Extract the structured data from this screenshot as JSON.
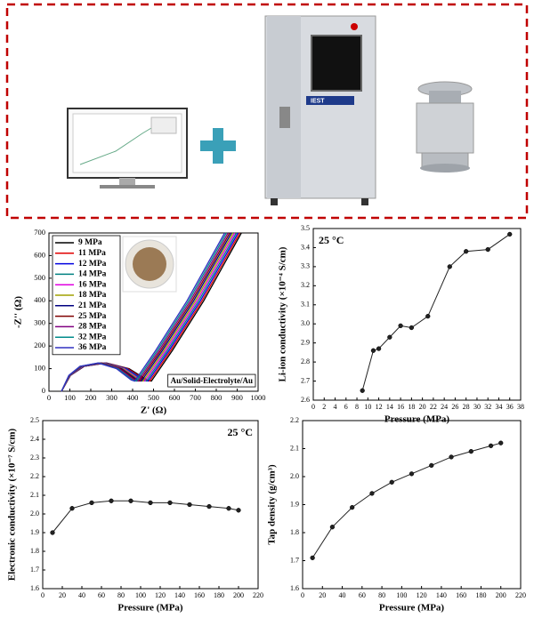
{
  "header_panel": {
    "device_label": "IEST"
  },
  "chart_data": [
    {
      "type": "line",
      "xlabel": "Z' (Ω)",
      "ylabel": "-Z'' (Ω)",
      "annotation": "Au/Solid-Electrolyte/Au",
      "annotation_position": "lower right",
      "xlim": [
        0,
        1000
      ],
      "xticks": [
        0,
        100,
        200,
        300,
        400,
        500,
        600,
        700,
        800,
        900,
        1000
      ],
      "ylim": [
        0,
        700
      ],
      "yticks": [
        0,
        100,
        200,
        300,
        400,
        500,
        600,
        700
      ],
      "grid": false,
      "marker": false,
      "legend": "upper left",
      "series": [
        {
          "name": "9 MPa",
          "color": "#000000",
          "x": [
            60,
            103,
            168,
            275,
            383,
            469,
            490,
            590,
            740,
            920
          ],
          "values": [
            0,
            70,
            110,
            125,
            100,
            50,
            45,
            180,
            400,
            700
          ]
        },
        {
          "name": "11 MPa",
          "color": "#e00000",
          "x": [
            60,
            102,
            166,
            271,
            377,
            461,
            482,
            582,
            732,
            912
          ],
          "values": [
            0,
            70,
            110,
            125,
            100,
            50,
            45,
            180,
            400,
            700
          ]
        },
        {
          "name": "12 MPa",
          "color": "#0000e0",
          "x": [
            60,
            101,
            164,
            267,
            371,
            453,
            474,
            574,
            724,
            904
          ],
          "values": [
            0,
            70,
            110,
            125,
            100,
            50,
            45,
            180,
            400,
            700
          ]
        },
        {
          "name": "14 MPa",
          "color": "#008080",
          "x": [
            60,
            101,
            162,
            263,
            365,
            446,
            466,
            566,
            716,
            896
          ],
          "values": [
            0,
            70,
            110,
            125,
            100,
            50,
            45,
            180,
            400,
            700
          ]
        },
        {
          "name": "16 MPa",
          "color": "#e000e0",
          "x": [
            60,
            100,
            160,
            259,
            359,
            438,
            458,
            558,
            708,
            888
          ],
          "values": [
            0,
            70,
            110,
            125,
            100,
            50,
            45,
            180,
            400,
            700
          ]
        },
        {
          "name": "18 MPa",
          "color": "#a0a000",
          "x": [
            60,
            99,
            158,
            255,
            353,
            431,
            450,
            550,
            700,
            880
          ],
          "values": [
            0,
            70,
            110,
            125,
            100,
            50,
            45,
            180,
            400,
            700
          ]
        },
        {
          "name": "21 MPa",
          "color": "#000080",
          "x": [
            60,
            98,
            156,
            251,
            347,
            423,
            442,
            542,
            692,
            872
          ],
          "values": [
            0,
            70,
            110,
            125,
            100,
            50,
            45,
            180,
            400,
            700
          ]
        },
        {
          "name": "25 MPa",
          "color": "#800000",
          "x": [
            60,
            97,
            154,
            247,
            341,
            415,
            434,
            534,
            684,
            864
          ],
          "values": [
            0,
            70,
            110,
            125,
            100,
            50,
            45,
            180,
            400,
            700
          ]
        },
        {
          "name": "28 MPa",
          "color": "#800080",
          "x": [
            60,
            97,
            152,
            243,
            335,
            408,
            426,
            526,
            676,
            856
          ],
          "values": [
            0,
            70,
            110,
            125,
            100,
            50,
            45,
            180,
            400,
            700
          ]
        },
        {
          "name": "32 MPa",
          "color": "#008b8b",
          "x": [
            60,
            96,
            150,
            239,
            329,
            400,
            418,
            518,
            668,
            848
          ],
          "values": [
            0,
            70,
            110,
            125,
            100,
            50,
            45,
            180,
            400,
            700
          ]
        },
        {
          "name": "36 MPa",
          "color": "#3030c0",
          "x": [
            60,
            95,
            148,
            235,
            323,
            393,
            410,
            510,
            660,
            840
          ],
          "values": [
            0,
            70,
            110,
            125,
            100,
            50,
            45,
            180,
            400,
            700
          ]
        }
      ]
    },
    {
      "type": "line",
      "xlabel": "Pressure (MPa)",
      "ylabel": "Li-ion conductivity (×10⁻⁴ S/cm)",
      "annotation": "25 °C",
      "annotation_position": "upper left",
      "xlim": [
        0,
        38
      ],
      "xticks": [
        0,
        2,
        4,
        6,
        8,
        10,
        12,
        14,
        16,
        18,
        20,
        22,
        24,
        26,
        28,
        30,
        32,
        34,
        36,
        38
      ],
      "ylim": [
        2.6,
        3.5
      ],
      "yticks": [
        2.6,
        2.7,
        2.8,
        2.9,
        {
          "value": 3,
          "label": "3.0"
        },
        3.1,
        3.2,
        3.3,
        3.4,
        3.5
      ],
      "grid": false,
      "marker": true,
      "x": [
        9,
        11,
        12,
        14,
        16,
        18,
        21,
        25,
        28,
        32,
        36
      ],
      "series": [
        {
          "color": "#222222",
          "values": [
            2.65,
            2.86,
            2.87,
            2.93,
            2.99,
            2.98,
            3.04,
            3.3,
            3.38,
            3.39,
            3.47
          ]
        }
      ]
    },
    {
      "type": "line",
      "xlabel": "Pressure (MPa)",
      "ylabel": "Electronic conductivity (×10⁻⁷ S/cm)",
      "annotation": "25 °C",
      "annotation_position": "upper right",
      "xlim": [
        0,
        220
      ],
      "xticks": [
        0,
        20,
        40,
        60,
        80,
        100,
        120,
        140,
        160,
        180,
        200,
        220
      ],
      "ylim": [
        1.6,
        2.5
      ],
      "yticks": [
        1.6,
        1.7,
        1.8,
        1.9,
        {
          "value": 2,
          "label": "2.0"
        },
        2.1,
        2.2,
        2.3,
        2.4,
        2.5
      ],
      "grid": false,
      "marker": true,
      "x": [
        10,
        30,
        50,
        70,
        90,
        110,
        130,
        150,
        170,
        190,
        200
      ],
      "series": [
        {
          "color": "#222222",
          "values": [
            1.9,
            2.03,
            2.06,
            2.07,
            2.07,
            2.06,
            2.06,
            2.05,
            2.04,
            2.03,
            2.02
          ]
        }
      ]
    },
    {
      "type": "line",
      "xlabel": "Pressure (MPa)",
      "ylabel": "Tap density (g/cm³)",
      "xlim": [
        0,
        220
      ],
      "xticks": [
        0,
        20,
        40,
        60,
        80,
        100,
        120,
        140,
        160,
        180,
        200,
        220
      ],
      "ylim": [
        1.6,
        2.2
      ],
      "yticks": [
        1.6,
        1.7,
        1.8,
        1.9,
        {
          "value": 2,
          "label": "2.0"
        },
        2.1,
        2.2
      ],
      "grid": false,
      "marker": true,
      "x": [
        10,
        30,
        50,
        70,
        90,
        110,
        130,
        150,
        170,
        190,
        200
      ],
      "series": [
        {
          "color": "#222222",
          "values": [
            1.71,
            1.82,
            1.89,
            1.94,
            1.98,
            2.01,
            2.04,
            2.07,
            2.09,
            2.11,
            2.12
          ]
        }
      ]
    }
  ]
}
